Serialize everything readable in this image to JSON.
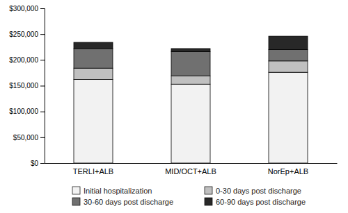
{
  "chart_data": {
    "type": "bar",
    "stacked": true,
    "categories": [
      "TERLI+ALB",
      "MID/OCT+ALB",
      "NorEp+ALB"
    ],
    "series": [
      {
        "name": "Initial hospitalization",
        "color": "#f2f2f2",
        "values": [
          162000,
          153000,
          176000
        ]
      },
      {
        "name": "0-30 days post discharge",
        "color": "#c0c0c0",
        "values": [
          22000,
          16000,
          22000
        ]
      },
      {
        "name": "30-60 days post discharge",
        "color": "#707070",
        "values": [
          38000,
          47000,
          22000
        ]
      },
      {
        "name": "60-90 days post discharge",
        "color": "#282828",
        "values": [
          12000,
          6000,
          26000
        ]
      }
    ],
    "ylim": [
      0,
      300000
    ],
    "yticks": [
      {
        "value": 0,
        "label": "$0"
      },
      {
        "value": 50000,
        "label": "$50,000"
      },
      {
        "value": 100000,
        "label": "$100,000"
      },
      {
        "value": 150000,
        "label": "$150,000"
      },
      {
        "value": 200000,
        "label": "$200,000"
      },
      {
        "value": 250000,
        "label": "$250,000"
      },
      {
        "value": 300000,
        "label": "$300,000"
      }
    ],
    "grid": false,
    "legend": "bottom"
  }
}
